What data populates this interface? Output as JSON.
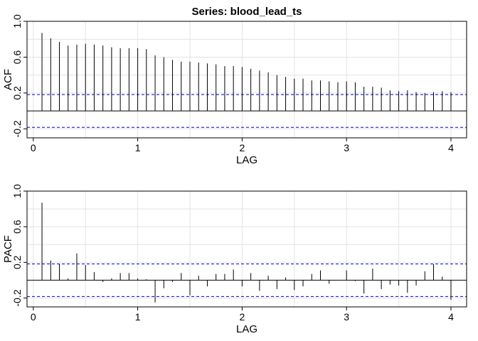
{
  "chart_data": [
    {
      "type": "bar",
      "title": "Series:  blood_lead_ts",
      "xlabel": "LAG",
      "ylabel": "ACF",
      "xlim": [
        -0.06,
        4.15
      ],
      "ylim": [
        -0.3,
        1.0
      ],
      "xticks": [
        0,
        1,
        2,
        3,
        4
      ],
      "yticks": [
        -0.2,
        0.2,
        0.6,
        1.0
      ],
      "ytick_labels": [
        "-0.2",
        "0.2",
        "0.6",
        "1.0"
      ],
      "grid": true,
      "confidence_bound": 0.183,
      "confidence_color": "#0000cc",
      "x": [
        0.0833,
        0.1667,
        0.25,
        0.3333,
        0.4167,
        0.5,
        0.5833,
        0.6667,
        0.75,
        0.8333,
        0.9167,
        1.0,
        1.0833,
        1.1667,
        1.25,
        1.3333,
        1.4167,
        1.5,
        1.5833,
        1.6667,
        1.75,
        1.8333,
        1.9167,
        2.0,
        2.0833,
        2.1667,
        2.25,
        2.3333,
        2.4167,
        2.5,
        2.5833,
        2.6667,
        2.75,
        2.8333,
        2.9167,
        3.0,
        3.0833,
        3.1667,
        3.25,
        3.3333,
        3.4167,
        3.5,
        3.5833,
        3.6667,
        3.75,
        3.8333,
        3.9167,
        4.0
      ],
      "values": [
        0.87,
        0.81,
        0.77,
        0.73,
        0.74,
        0.75,
        0.74,
        0.73,
        0.71,
        0.7,
        0.7,
        0.7,
        0.69,
        0.62,
        0.6,
        0.57,
        0.55,
        0.55,
        0.54,
        0.53,
        0.52,
        0.5,
        0.5,
        0.49,
        0.47,
        0.45,
        0.43,
        0.4,
        0.38,
        0.36,
        0.36,
        0.34,
        0.34,
        0.33,
        0.32,
        0.33,
        0.32,
        0.27,
        0.27,
        0.26,
        0.23,
        0.22,
        0.23,
        0.21,
        0.2,
        0.21,
        0.22,
        0.21
      ]
    },
    {
      "type": "bar",
      "title": "",
      "xlabel": "LAG",
      "ylabel": "PACF",
      "xlim": [
        -0.06,
        4.15
      ],
      "ylim": [
        -0.3,
        1.0
      ],
      "xticks": [
        0,
        1,
        2,
        3,
        4
      ],
      "yticks": [
        -0.2,
        0.2,
        0.6,
        1.0
      ],
      "ytick_labels": [
        "-0.2",
        "0.2",
        "0.6",
        "1.0"
      ],
      "grid": true,
      "confidence_bound": 0.183,
      "confidence_color": "#0000cc",
      "x": [
        0.0833,
        0.1667,
        0.25,
        0.3333,
        0.4167,
        0.5,
        0.5833,
        0.6667,
        0.75,
        0.8333,
        0.9167,
        1.0,
        1.0833,
        1.1667,
        1.25,
        1.3333,
        1.4167,
        1.5,
        1.5833,
        1.6667,
        1.75,
        1.8333,
        1.9167,
        2.0,
        2.0833,
        2.1667,
        2.25,
        2.3333,
        2.4167,
        2.5,
        2.5833,
        2.6667,
        2.75,
        2.8333,
        2.9167,
        3.0,
        3.0833,
        3.1667,
        3.25,
        3.3333,
        3.4167,
        3.5,
        3.5833,
        3.6667,
        3.75,
        3.8333,
        3.9167,
        4.0
      ],
      "values": [
        0.87,
        0.22,
        0.18,
        0.02,
        0.3,
        0.17,
        0.09,
        -0.02,
        0.02,
        0.08,
        0.08,
        0.02,
        0.01,
        -0.25,
        -0.09,
        -0.02,
        0.08,
        -0.17,
        0.05,
        -0.07,
        0.07,
        0.07,
        0.12,
        -0.07,
        0.08,
        -0.12,
        0.05,
        -0.1,
        0.03,
        -0.11,
        -0.07,
        0.07,
        0.11,
        -0.04,
        0.0,
        0.11,
        -0.01,
        -0.15,
        0.13,
        -0.1,
        -0.05,
        -0.06,
        -0.14,
        -0.06,
        0.1,
        0.18,
        0.04,
        -0.22
      ]
    }
  ]
}
